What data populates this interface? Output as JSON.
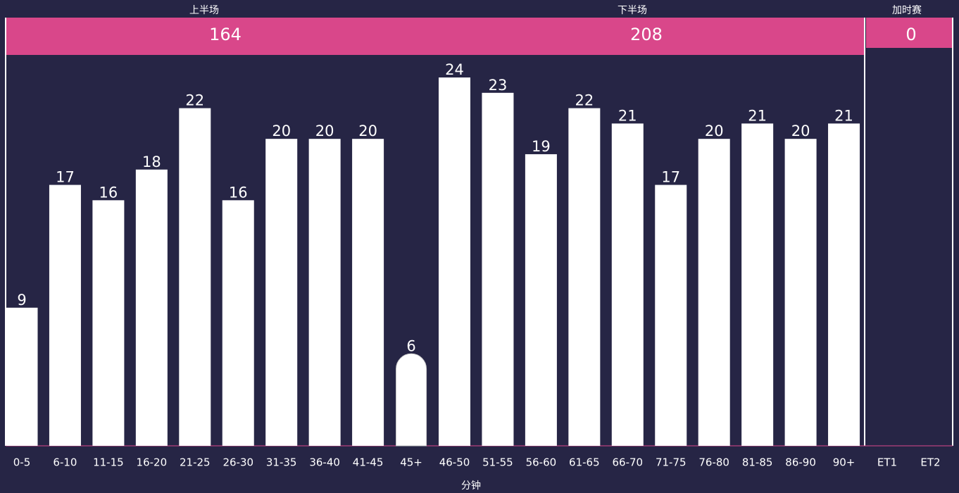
{
  "chart_data": {
    "type": "bar",
    "categories": [
      "0-5",
      "6-10",
      "11-15",
      "16-20",
      "21-25",
      "26-30",
      "31-35",
      "36-40",
      "41-45",
      "45+",
      "46-50",
      "51-55",
      "56-60",
      "61-65",
      "66-70",
      "71-75",
      "76-80",
      "81-85",
      "86-90",
      "90+",
      "ET1",
      "ET2"
    ],
    "values": [
      9,
      17,
      16,
      18,
      22,
      16,
      20,
      20,
      20,
      6,
      24,
      23,
      19,
      22,
      21,
      17,
      20,
      21,
      20,
      21,
      null,
      null
    ],
    "color": "#ffffff",
    "x_label": "分钟",
    "periods": [
      {
        "name": "上半场",
        "total": 164,
        "color": "#d9478a"
      },
      {
        "name": "下半场",
        "total": 208,
        "color": "#d9478a"
      },
      {
        "name": "加时赛",
        "total": 0,
        "color": "#d9478a"
      }
    ]
  }
}
